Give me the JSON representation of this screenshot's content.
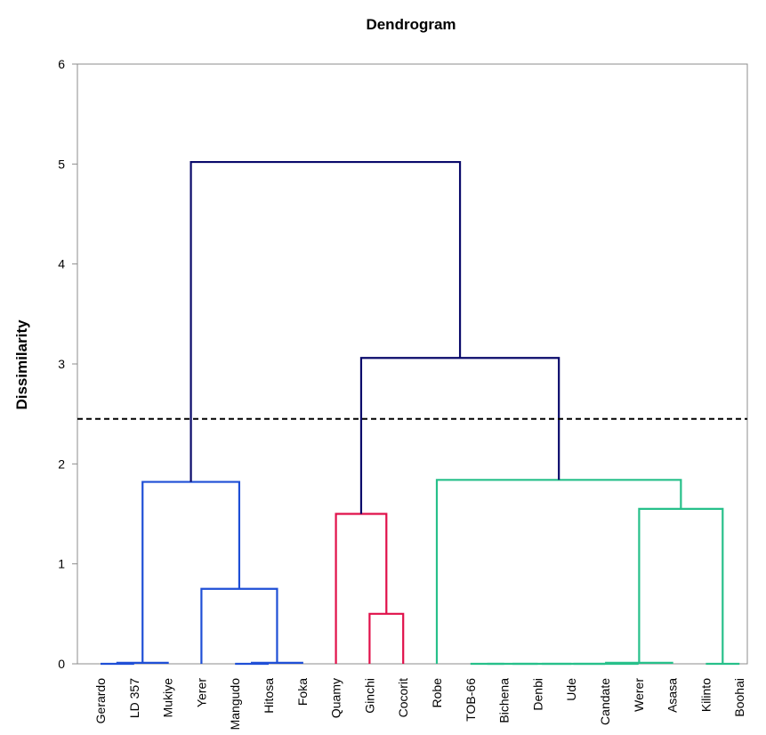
{
  "chart_data": {
    "type": "dendrogram",
    "title": "Dendrogram",
    "ylabel": "Dissimilarity",
    "xlabel": "",
    "ylim": [
      0,
      6
    ],
    "yticks": [
      0,
      1,
      2,
      3,
      4,
      5,
      6
    ],
    "grid": false,
    "cut_line": {
      "y": 2.45,
      "style": "dashed",
      "color": "#000000"
    },
    "leaves": [
      "Gerardo",
      "LD 357",
      "Mukiye",
      "Yerer",
      "Mangudo",
      "Hitosa",
      "Foka",
      "Quamy",
      "Ginchi",
      "Cocorit",
      "Robe",
      "TOB-66",
      "Bichena",
      "Denbi",
      "Ude",
      "Candate",
      "Werer",
      "Asasa",
      "Kilinto",
      "Boohai"
    ],
    "cluster_colors": {
      "cluster1": "#1f4fd6",
      "cluster2": "#e0104a",
      "cluster3": "#27c08a",
      "root": "#0a0a6b"
    },
    "merges": [
      {
        "left": "Gerardo",
        "right": "LD 357",
        "height": 0.0,
        "color": "cluster1"
      },
      {
        "left": "LD 357",
        "right": "Mukiye",
        "height": 0.01,
        "color": "cluster1"
      },
      {
        "left": "Mangudo",
        "right": "Hitosa",
        "height": 0.0,
        "color": "cluster1"
      },
      {
        "left": "Hitosa",
        "right": "Foka",
        "height": 0.01,
        "color": "cluster1"
      },
      {
        "left": "Yerer",
        "right": "{Mangudo, Hitosa, Foka}",
        "height": 0.75,
        "color": "cluster1"
      },
      {
        "left": "{Gerardo, LD 357, Mukiye}",
        "right": "{Yerer, Mangudo, Hitosa, Foka}",
        "height": 1.82,
        "color": "cluster1"
      },
      {
        "left": "Ginchi",
        "right": "Cocorit",
        "height": 0.5,
        "color": "cluster2"
      },
      {
        "left": "Quamy",
        "right": "{Ginchi, Cocorit}",
        "height": 1.5,
        "color": "cluster2"
      },
      {
        "left": "TOB-66",
        "right": "Bichena",
        "height": 0.0,
        "color": "cluster3"
      },
      {
        "left": "Bichena",
        "right": "Denbi",
        "height": 0.0,
        "color": "cluster3"
      },
      {
        "left": "Denbi",
        "right": "Ude",
        "height": 0.0,
        "color": "cluster3"
      },
      {
        "left": "Ude",
        "right": "Candate",
        "height": 0.0,
        "color": "cluster3"
      },
      {
        "left": "Candate",
        "right": "Werer",
        "height": 0.0,
        "color": "cluster3"
      },
      {
        "left": "Werer",
        "right": "Asasa",
        "height": 0.01,
        "color": "cluster3"
      },
      {
        "left": "Kilinto",
        "right": "Boohai",
        "height": 0.0,
        "color": "cluster3"
      },
      {
        "left": "{TOB-66 … Asasa}",
        "right": "{Kilinto, Boohai}",
        "height": 1.55,
        "color": "cluster3"
      },
      {
        "left": "Robe",
        "right": "{TOB-66 … Boohai}",
        "height": 1.84,
        "color": "cluster3"
      },
      {
        "left": "{Quamy, Ginchi, Cocorit}",
        "right": "{Robe … Boohai}",
        "height": 3.06,
        "color": "root"
      },
      {
        "left": "{Gerardo … Foka}",
        "right": "{Quamy … Boohai}",
        "height": 5.02,
        "color": "root"
      }
    ]
  }
}
